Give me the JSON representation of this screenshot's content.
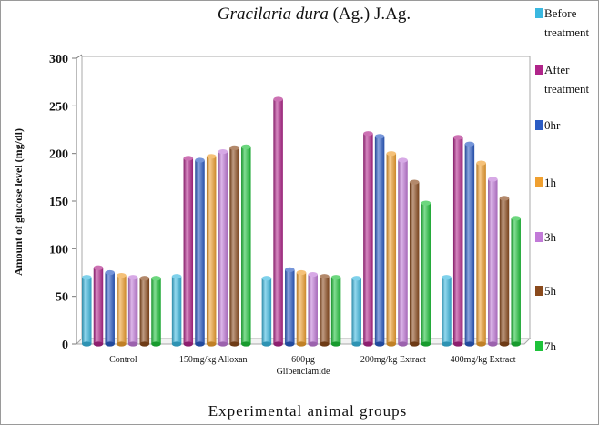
{
  "chart_data": {
    "type": "bar",
    "title_italic": "Gracilaria dura",
    "title_rest": " (Ag.) J.Ag.",
    "xlabel": "Experimental  animal  groups",
    "ylabel": "Amount of glucose level (mg/dl)",
    "ylim": [
      0,
      300
    ],
    "yticks": [
      "0",
      "50",
      "100",
      "150",
      "200",
      "250",
      "300"
    ],
    "categories": [
      [
        "Control"
      ],
      [
        "150mg/kg Alloxan"
      ],
      [
        "600µg",
        "Glibenclamide"
      ],
      [
        "200mg/kg Extract"
      ],
      [
        "400mg/kg Extract"
      ]
    ],
    "series": [
      {
        "name": "Before treatment",
        "legend_lines": [
          "Before",
          "treatment"
        ],
        "color": "#3ab8e0",
        "values": [
          70,
          71,
          69,
          69,
          70
        ]
      },
      {
        "name": "After treatment",
        "legend_lines": [
          "After",
          "treatment"
        ],
        "color": "#b0258a",
        "values": [
          80,
          195,
          257,
          221,
          217
        ]
      },
      {
        "name": "0hr",
        "legend_lines": [
          "0hr"
        ],
        "color": "#2b5cc4",
        "values": [
          75,
          193,
          78,
          218,
          210
        ]
      },
      {
        "name": "1h",
        "legend_lines": [
          "1h"
        ],
        "color": "#f0a030",
        "values": [
          72,
          197,
          75,
          200,
          190
        ]
      },
      {
        "name": "3h",
        "legend_lines": [
          "3h"
        ],
        "color": "#c27ad8",
        "values": [
          70,
          202,
          73,
          193,
          173
        ]
      },
      {
        "name": "5h",
        "legend_lines": [
          "5h"
        ],
        "color": "#8a4a1c",
        "values": [
          69,
          206,
          71,
          170,
          153
        ]
      },
      {
        "name": "7h",
        "legend_lines": [
          "7h"
        ],
        "color": "#1ec23a",
        "values": [
          69,
          207,
          70,
          148,
          132
        ]
      }
    ],
    "grid": false,
    "legend_position": "right"
  }
}
